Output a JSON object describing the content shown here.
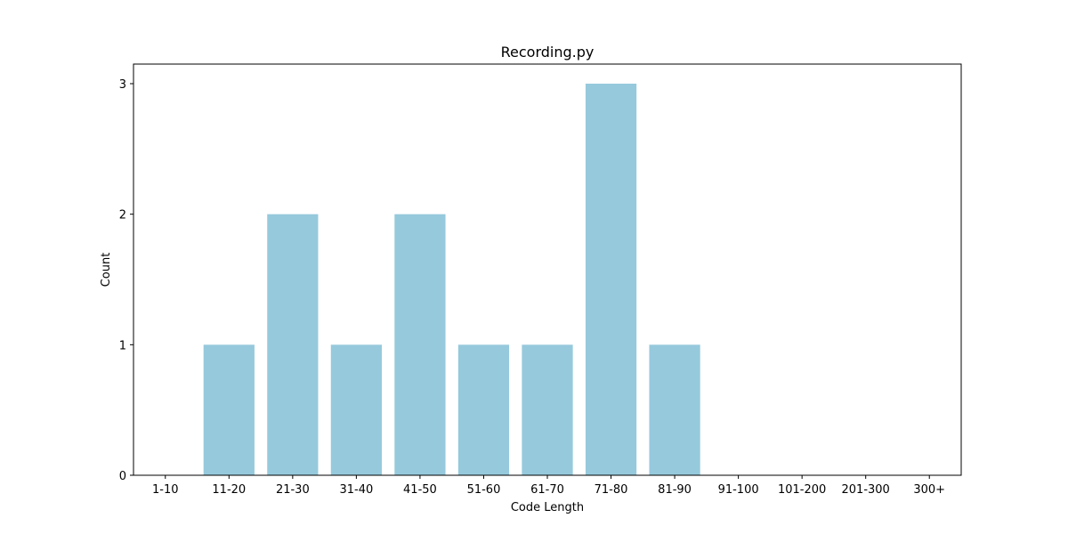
{
  "chart_data": {
    "type": "bar",
    "title": "Recording.py",
    "xlabel": "Code Length",
    "ylabel": "Count",
    "categories": [
      "1-10",
      "11-20",
      "21-30",
      "31-40",
      "41-50",
      "51-60",
      "61-70",
      "71-80",
      "81-90",
      "91-100",
      "101-200",
      "201-300",
      "300+"
    ],
    "values": [
      0,
      1,
      2,
      1,
      2,
      1,
      1,
      3,
      1,
      0,
      0,
      0,
      0
    ],
    "ylim": [
      0,
      3.15
    ],
    "yticks": [
      0,
      1,
      2,
      3
    ],
    "bar_color": "#96c9dc",
    "grid": false,
    "legend": "none"
  }
}
